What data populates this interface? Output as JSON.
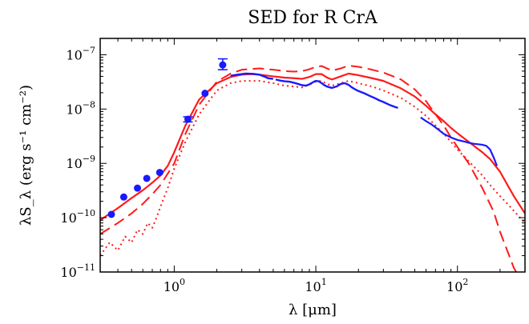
{
  "chart_data": {
    "type": "line",
    "title": "SED for R CrA",
    "xlabel": "λ [μm]",
    "ylabel": "λS_λ (erg s⁻¹ cm⁻²)",
    "xscale": "log",
    "yscale": "log",
    "xlim": [
      0.3,
      300
    ],
    "ylim": [
      1e-11,
      2e-07
    ],
    "grid": false,
    "legend": "none",
    "colors": {
      "observed": "#1a1aff",
      "model": "#ff1a1a"
    },
    "x_ticks": [
      {
        "value": 1,
        "base": "10",
        "exp": "0"
      },
      {
        "value": 10,
        "base": "10",
        "exp": "1"
      },
      {
        "value": 100,
        "base": "10",
        "exp": "2"
      }
    ],
    "y_ticks": [
      {
        "value": 1e-11,
        "base": "10",
        "exp": "−11"
      },
      {
        "value": 1e-10,
        "base": "10",
        "exp": "−10"
      },
      {
        "value": 1e-09,
        "base": "10",
        "exp": "−9"
      },
      {
        "value": 1e-08,
        "base": "10",
        "exp": "−8"
      },
      {
        "value": 1e-07,
        "base": "10",
        "exp": "−7"
      }
    ],
    "photometry": [
      {
        "x": 0.36,
        "y": 1.15e-10
      },
      {
        "x": 0.44,
        "y": 2.4e-10
      },
      {
        "x": 0.55,
        "y": 3.5e-10
      },
      {
        "x": 0.64,
        "y": 5.3e-10
      },
      {
        "x": 0.79,
        "y": 6.8e-10
      },
      {
        "x": 1.25,
        "y": 6.5e-09,
        "yerr": [
          5.8e-09,
          7.2e-09
        ]
      },
      {
        "x": 1.65,
        "y": 1.95e-08
      },
      {
        "x": 2.2,
        "y": 6.5e-08,
        "yerr": [
          5.3e-08,
          8.4e-08
        ]
      }
    ],
    "spectrum_nir": {
      "x": [
        2.5,
        2.8,
        3.2,
        3.6,
        4.0,
        4.3,
        4.6,
        5.0
      ],
      "y": [
        4.1e-08,
        4.3e-08,
        4.5e-08,
        4.45e-08,
        4.3e-08,
        4e-08,
        3.7e-08,
        3.6e-08
      ]
    },
    "spectrum_irs": {
      "x": [
        5.2,
        5.6,
        6.0,
        6.5,
        7.0,
        7.5,
        8.0,
        8.5,
        9.0,
        9.5,
        10.0,
        10.5,
        11.0,
        11.5,
        12.0,
        13.0,
        14.0,
        15.0,
        16.0,
        17.0,
        18.0,
        19.0,
        20.0,
        22.0,
        24.0,
        26.0,
        28.0,
        30.0,
        33.0,
        36.0,
        38.0
      ],
      "y": [
        3.5e-08,
        3.35e-08,
        3.25e-08,
        3.2e-08,
        3.05e-08,
        2.9e-08,
        2.75e-08,
        2.7e-08,
        2.85e-08,
        3.1e-08,
        3.3e-08,
        3.25e-08,
        3e-08,
        2.75e-08,
        2.6e-08,
        2.45e-08,
        2.6e-08,
        2.9e-08,
        3e-08,
        2.8e-08,
        2.5e-08,
        2.3e-08,
        2.15e-08,
        1.95e-08,
        1.75e-08,
        1.6e-08,
        1.45e-08,
        1.35e-08,
        1.2e-08,
        1.1e-08,
        1.05e-08
      ]
    },
    "spectrum_far": {
      "x": [
        55,
        60,
        65,
        70,
        75,
        80,
        90,
        100,
        110,
        120,
        130,
        140,
        150,
        160,
        170,
        180,
        190
      ],
      "y": [
        7e-09,
        6e-09,
        5.3e-09,
        4.6e-09,
        4e-09,
        3.5e-09,
        3e-09,
        2.7e-09,
        2.55e-09,
        2.4e-09,
        2.3e-09,
        2.25e-09,
        2.2e-09,
        2.1e-09,
        1.8e-09,
        1.3e-09,
        9e-10
      ]
    },
    "model_solid": {
      "x": [
        0.3,
        0.4,
        0.5,
        0.6,
        0.7,
        0.8,
        0.9,
        1.0,
        1.2,
        1.5,
        2.0,
        2.5,
        3.0,
        3.5,
        4.0,
        5.0,
        6.0,
        7.0,
        8.0,
        9.0,
        10.0,
        11.0,
        12.0,
        13.0,
        15.0,
        17.0,
        20.0,
        25.0,
        30.0,
        40.0,
        50.0,
        60.0,
        70.0,
        80.0,
        90.0,
        100.0,
        120.0,
        150.0,
        170.0,
        200.0,
        250.0,
        300.0
      ],
      "y": [
        9e-11,
        1.5e-10,
        2.3e-10,
        3.2e-10,
        4.4e-10,
        6e-10,
        9e-10,
        1.6e-09,
        5e-09,
        1.5e-08,
        3e-08,
        3.9e-08,
        4.3e-08,
        4.4e-08,
        4.3e-08,
        4e-08,
        3.8e-08,
        3.7e-08,
        3.6e-08,
        3.9e-08,
        4.4e-08,
        4.4e-08,
        3.8e-08,
        3.5e-08,
        4e-08,
        4.5e-08,
        4.2e-08,
        3.7e-08,
        3.3e-08,
        2.4e-08,
        1.7e-08,
        1.15e-08,
        8e-09,
        6e-09,
        4.5e-09,
        3.6e-09,
        2.5e-09,
        1.6e-09,
        1.2e-09,
        7e-10,
        2.5e-10,
        1.2e-10
      ]
    },
    "model_dashed": {
      "x": [
        0.3,
        0.4,
        0.5,
        0.6,
        0.7,
        0.8,
        1.0,
        1.2,
        1.5,
        2.0,
        2.5,
        3.0,
        4.0,
        5.0,
        6.0,
        7.0,
        8.0,
        9.0,
        10.0,
        11.0,
        12.0,
        13.0,
        15.0,
        17.0,
        20.0,
        25.0,
        30.0,
        40.0,
        50.0,
        60.0,
        70.0,
        80.0,
        90.0,
        100.0,
        120.0,
        150.0,
        180.0,
        200.0,
        250.0,
        300.0
      ],
      "y": [
        5e-11,
        8e-11,
        1.2e-10,
        1.8e-10,
        2.7e-10,
        4e-10,
        1e-09,
        3.5e-09,
        1.2e-08,
        3.2e-08,
        4.5e-08,
        5.3e-08,
        5.6e-08,
        5.3e-08,
        5e-08,
        4.9e-08,
        5e-08,
        5.4e-08,
        6e-08,
        6.2e-08,
        5.6e-08,
        5.1e-08,
        5.6e-08,
        6.3e-08,
        6e-08,
        5.3e-08,
        4.7e-08,
        3.5e-08,
        2.3e-08,
        1.4e-08,
        8e-09,
        5e-09,
        3e-09,
        2e-09,
        1e-09,
        3.5e-10,
        1.3e-10,
        5.5e-11,
        1.2e-11,
        5e-12
      ]
    },
    "model_dotted": {
      "x": [
        0.3,
        0.35,
        0.4,
        0.45,
        0.5,
        0.55,
        0.6,
        0.65,
        0.7,
        0.75,
        0.8,
        0.9,
        1.0,
        1.2,
        1.5,
        2.0,
        2.5,
        3.0,
        4.0,
        5.0,
        6.0,
        7.0,
        8.0,
        9.0,
        10.0,
        11.0,
        12.0,
        13.0,
        15.0,
        17.0,
        20.0,
        25.0,
        30.0,
        40.0,
        50.0,
        60.0,
        70.0,
        80.0,
        90.0,
        100.0,
        120.0,
        150.0,
        170.0,
        200.0,
        230.0,
        260.0,
        300.0
      ],
      "y": [
        2e-11,
        3.5e-11,
        2.5e-11,
        4.5e-11,
        3.5e-11,
        6e-11,
        5e-11,
        8e-11,
        6.5e-11,
        1e-10,
        1.6e-10,
        3.5e-10,
        8e-10,
        2.5e-09,
        8e-09,
        2.2e-08,
        3e-08,
        3.3e-08,
        3.3e-08,
        3e-08,
        2.7e-08,
        2.6e-08,
        2.5e-08,
        2.8e-08,
        3.2e-08,
        3.3e-08,
        2.9e-08,
        2.7e-08,
        3e-08,
        3.3e-08,
        3e-08,
        2.6e-08,
        2.2e-08,
        1.6e-08,
        1.1e-08,
        7.5e-09,
        5e-09,
        3.5e-09,
        2.5e-09,
        1.8e-09,
        1.1e-09,
        6e-10,
        4e-10,
        2.5e-10,
        1.7e-10,
        1.2e-10,
        8e-11
      ]
    }
  }
}
